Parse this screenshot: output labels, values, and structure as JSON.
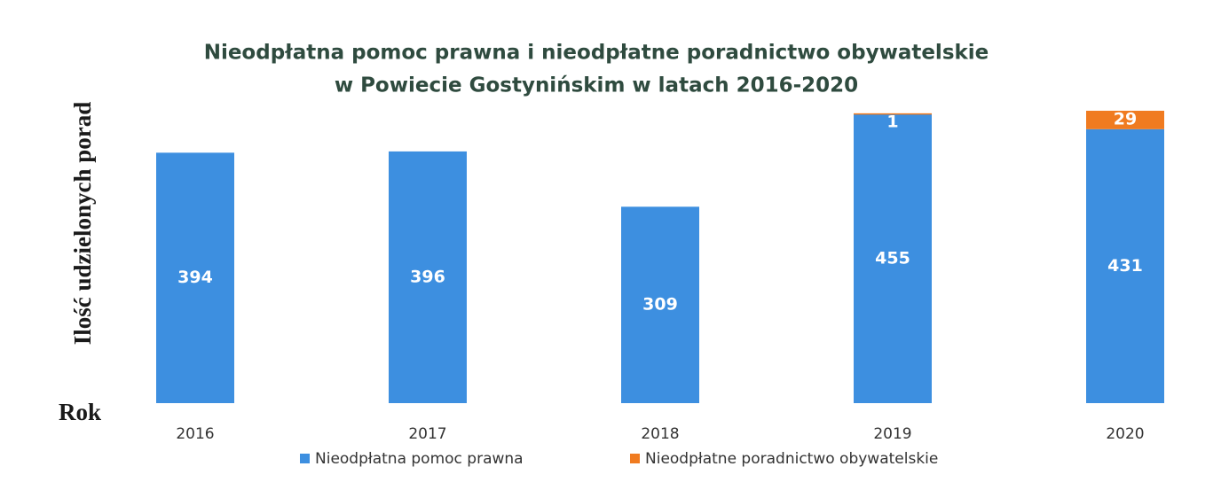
{
  "chart_data": {
    "type": "stacked_bar",
    "title": "Nieodpłatna pomoc prawna i nieodpłatne poradnictwo obywatelskie",
    "subtitle": "w Powiecie Gostynińskim w latach 2016-2020",
    "y_label": "Ilość udzielonych porad",
    "x_label": "Rok",
    "categories": [
      "2016",
      "2017",
      "2018",
      "2019",
      "2020"
    ],
    "series": [
      {
        "name": "Nieodpłatna pomoc prawna",
        "color": "#3d8fe0",
        "values": [
          394,
          396,
          309,
          455,
          431
        ]
      },
      {
        "name": "Nieodpłatne poradnictwo obywatelskie",
        "color": "#f07b20",
        "values": [
          null,
          null,
          null,
          1,
          29
        ]
      }
    ],
    "legend": "bottom"
  }
}
